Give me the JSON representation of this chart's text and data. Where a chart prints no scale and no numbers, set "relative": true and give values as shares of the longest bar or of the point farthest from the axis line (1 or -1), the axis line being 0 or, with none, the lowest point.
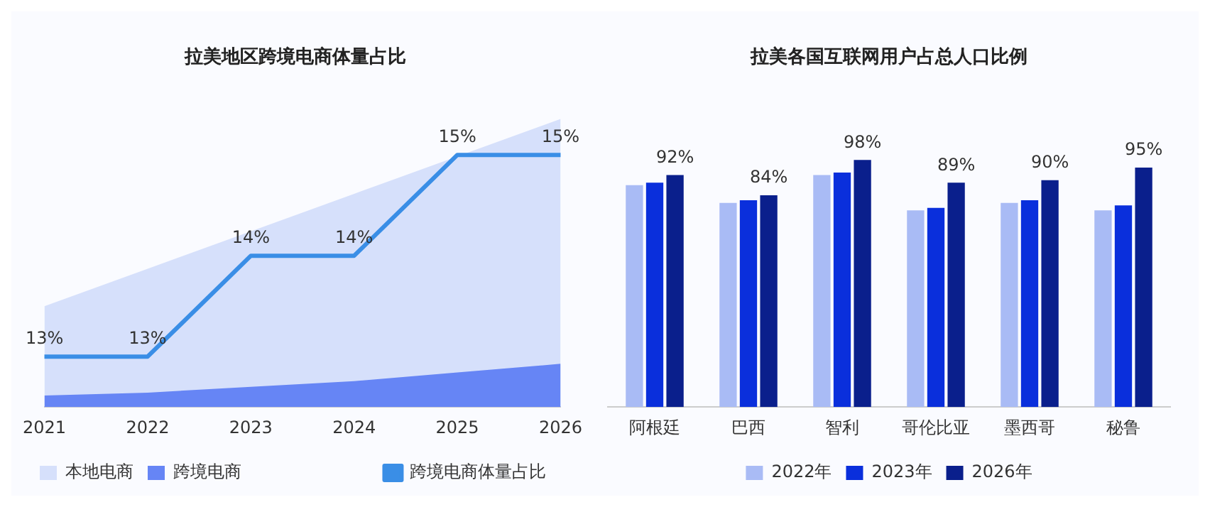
{
  "chart_data": [
    {
      "type": "area",
      "title": "拉美地区跨境电商体量占比",
      "categories": [
        "2021",
        "2022",
        "2023",
        "2024",
        "2025",
        "2026"
      ],
      "relative": true,
      "legend": "bottom left",
      "grid": false,
      "series": [
        {
          "name": "本地电商",
          "color": "#d6e0fb",
          "values": [
            0.35,
            0.48,
            0.61,
            0.74,
            0.87,
            1
          ]
        },
        {
          "name": "跨境电商",
          "color": "#6685f5",
          "values": [
            0.04,
            0.05,
            0.07,
            0.09,
            0.12,
            0.15
          ]
        }
      ]
    },
    {
      "type": "line",
      "categories": [
        "2021",
        "2022",
        "2023",
        "2024",
        "2025",
        "2026"
      ],
      "tick_labels": false,
      "legend": "bottom right",
      "grid": false,
      "marker": "none",
      "series": [
        {
          "name": "跨境电商体量占比",
          "color": "#3a8ee6",
          "values": [
            13,
            13,
            14,
            14,
            15,
            15
          ],
          "value_labels": [
            "13%",
            "13%",
            "14%",
            "14%",
            "15%",
            "15%"
          ]
        }
      ]
    },
    {
      "type": "bar",
      "title": "拉美各国互联网用户占总人口比例",
      "categories": [
        "阿根廷",
        "巴西",
        "智利",
        "哥伦比亚",
        "墨西哥",
        "秘鲁"
      ],
      "legend": "bottom",
      "grid": false,
      "series": [
        {
          "name": "2022年",
          "color": "#a9bbf5",
          "values": [
            88,
            81,
            92,
            78,
            81,
            78
          ]
        },
        {
          "name": "2023年",
          "color": "#0a2fdc",
          "values": [
            89,
            82,
            93,
            79,
            82,
            80
          ]
        },
        {
          "name": "2026年",
          "color": "#0a1f8c",
          "values": [
            92,
            84,
            98,
            89,
            90,
            95
          ],
          "value_labels": [
            "92%",
            "84%",
            "98%",
            "89%",
            "90%",
            "95%"
          ]
        }
      ]
    }
  ]
}
